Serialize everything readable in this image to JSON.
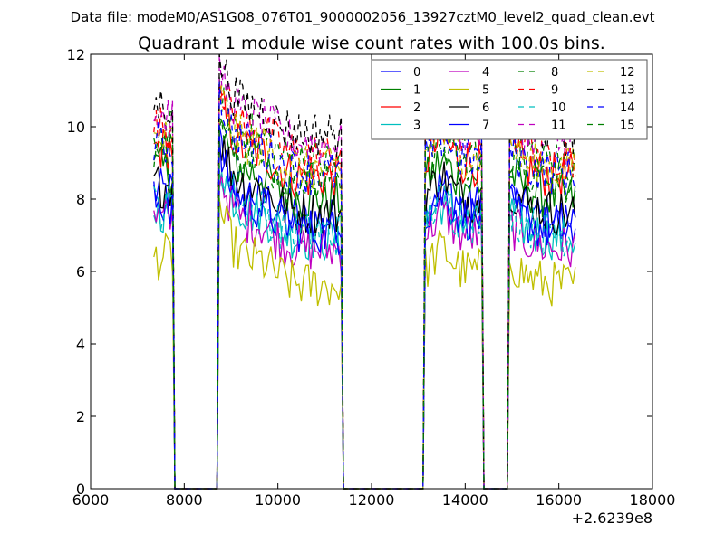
{
  "chart_data": {
    "type": "line",
    "figure_title": "Data file: modeM0/AS1G08_076T01_9000002056_13927cztM0_level2_quad_clean.evt",
    "title": "Quadrant 1 module wise count rates with 100.0s bins.",
    "xlabel": "",
    "ylabel": "",
    "x_offset_label": "+2.6239e8",
    "xlim": [
      6000,
      18000
    ],
    "ylim": [
      0,
      12
    ],
    "x_ticks": [
      "6000",
      "8000",
      "10000",
      "12000",
      "14000",
      "16000",
      "18000"
    ],
    "y_ticks": [
      "0",
      "2",
      "4",
      "6",
      "8",
      "10",
      "12"
    ],
    "legend_position": "top-right",
    "grid": false,
    "segments": [
      {
        "start": 7350,
        "end": 7750
      },
      {
        "start": 8750,
        "end": 11350
      },
      {
        "start": 13150,
        "end": 14350
      },
      {
        "start": 14950,
        "end": 16350
      }
    ],
    "series": [
      {
        "name": "0",
        "color": "#0000ff",
        "dash": "solid",
        "base": 7.4
      },
      {
        "name": "1",
        "color": "#008000",
        "dash": "solid",
        "base": 8.0
      },
      {
        "name": "2",
        "color": "#ff0000",
        "dash": "solid",
        "base": 8.6
      },
      {
        "name": "3",
        "color": "#00bfbf",
        "dash": "solid",
        "base": 6.9
      },
      {
        "name": "4",
        "color": "#bf00bf",
        "dash": "solid",
        "base": 6.6
      },
      {
        "name": "5",
        "color": "#bfbf00",
        "dash": "solid",
        "base": 5.6
      },
      {
        "name": "6",
        "color": "#000000",
        "dash": "solid",
        "base": 7.6
      },
      {
        "name": "7",
        "color": "#0000ff",
        "dash": "solid",
        "base": 7.1
      },
      {
        "name": "8",
        "color": "#008000",
        "dash": "dashed",
        "base": 9.0
      },
      {
        "name": "9",
        "color": "#ff0000",
        "dash": "dashed",
        "base": 9.2
      },
      {
        "name": "10",
        "color": "#00bfbf",
        "dash": "dashed",
        "base": 7.0
      },
      {
        "name": "11",
        "color": "#bf00bf",
        "dash": "dashed",
        "base": 9.5
      },
      {
        "name": "12",
        "color": "#bfbf00",
        "dash": "dashed",
        "base": 8.8
      },
      {
        "name": "13",
        "color": "#000000",
        "dash": "dashed",
        "base": 9.8
      },
      {
        "name": "14",
        "color": "#0000ff",
        "dash": "dashed",
        "base": 8.7
      },
      {
        "name": "15",
        "color": "#008000",
        "dash": "dashed",
        "base": 8.4
      }
    ]
  }
}
